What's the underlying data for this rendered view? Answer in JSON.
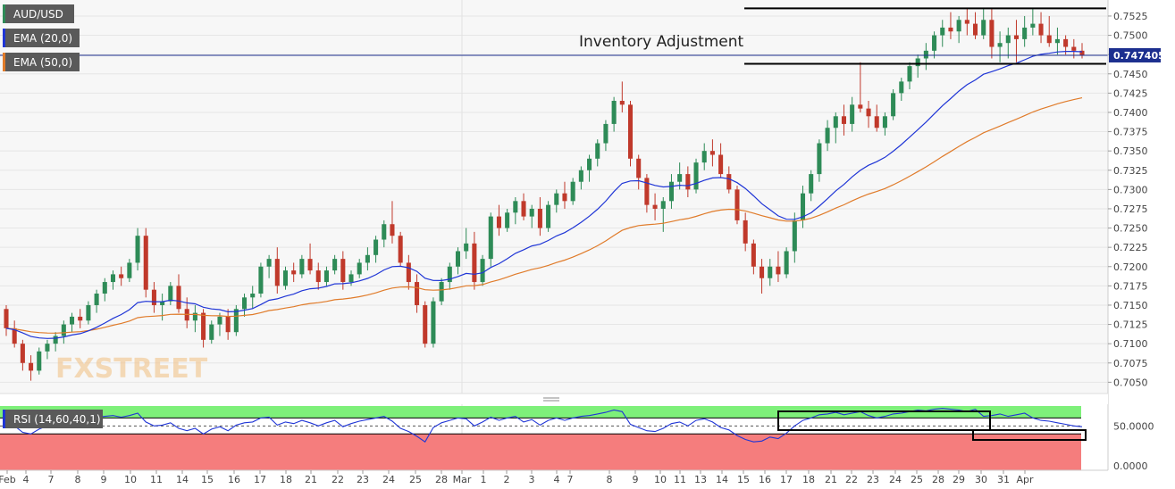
{
  "legend": {
    "symbol": "AUD/USD",
    "ema20": "EMA (20,0)",
    "ema50": "EMA (50,0)",
    "rsi": "RSI (14,60,40,1)"
  },
  "annotation": "Inventory Adjustment",
  "watermark": "FXSTREET",
  "colors": {
    "background": "#f7f7f7",
    "bull": "#2e8b57",
    "bear": "#c0392b",
    "ema20": "#1f35d6",
    "ema50": "#e07b2a",
    "rsi_upper": "#7ef07a",
    "rsi_lower": "#f57d7d",
    "price_tag": "#1c2f8f"
  },
  "chart_data": [
    {
      "type": "candlestick",
      "title": "AUD/USD",
      "ylim": [
        0.704,
        0.754
      ],
      "y_ticks": [
        "0.7525",
        "0.7500",
        "0.7475",
        "0.7450",
        "0.7425",
        "0.7400",
        "0.7375",
        "0.7350",
        "0.7325",
        "0.7300",
        "0.7275",
        "0.7250",
        "0.7225",
        "0.7200",
        "0.7175",
        "0.7150",
        "0.7125",
        "0.7100",
        "0.7075",
        "0.7050"
      ],
      "x_ticks": [
        "Feb",
        "4",
        "7",
        "8",
        "9",
        "10",
        "11",
        "14",
        "15",
        "16",
        "17",
        "18",
        "21",
        "22",
        "23",
        "24",
        "25",
        "28",
        "Mar",
        "1",
        "2",
        "3",
        "4",
        "7",
        "8",
        "9",
        "10",
        "11",
        "13",
        "14",
        "15",
        "16",
        "17",
        "18",
        "21",
        "22",
        "23",
        "24",
        "25",
        "28",
        "29",
        "30",
        "31",
        "Apr"
      ],
      "last_price": "0.747405",
      "last_value": 0.747405,
      "ohlc": [
        [
          0.7145,
          0.715,
          0.711,
          0.712
        ],
        [
          0.712,
          0.713,
          0.7095,
          0.71
        ],
        [
          0.71,
          0.7105,
          0.7065,
          0.7075
        ],
        [
          0.7075,
          0.7085,
          0.7052,
          0.7065
        ],
        [
          0.7065,
          0.7095,
          0.706,
          0.709
        ],
        [
          0.709,
          0.7105,
          0.708,
          0.71
        ],
        [
          0.71,
          0.7115,
          0.709,
          0.711
        ],
        [
          0.711,
          0.713,
          0.71,
          0.7125
        ],
        [
          0.7125,
          0.714,
          0.7115,
          0.7135
        ],
        [
          0.7135,
          0.7145,
          0.712,
          0.713
        ],
        [
          0.713,
          0.7155,
          0.7125,
          0.715
        ],
        [
          0.715,
          0.717,
          0.714,
          0.7165
        ],
        [
          0.7165,
          0.7185,
          0.7155,
          0.718
        ],
        [
          0.718,
          0.7195,
          0.717,
          0.719
        ],
        [
          0.719,
          0.72,
          0.7175,
          0.7185
        ],
        [
          0.7185,
          0.721,
          0.718,
          0.7205
        ],
        [
          0.7205,
          0.725,
          0.7195,
          0.724
        ],
        [
          0.724,
          0.725,
          0.716,
          0.717
        ],
        [
          0.717,
          0.718,
          0.714,
          0.715
        ],
        [
          0.715,
          0.7165,
          0.713,
          0.7155
        ],
        [
          0.7155,
          0.718,
          0.715,
          0.7175
        ],
        [
          0.7175,
          0.719,
          0.714,
          0.7145
        ],
        [
          0.7145,
          0.716,
          0.712,
          0.713
        ],
        [
          0.713,
          0.715,
          0.7115,
          0.714
        ],
        [
          0.714,
          0.7145,
          0.7095,
          0.7105
        ],
        [
          0.7105,
          0.713,
          0.71,
          0.7125
        ],
        [
          0.7125,
          0.714,
          0.711,
          0.7135
        ],
        [
          0.7135,
          0.7145,
          0.7105,
          0.7115
        ],
        [
          0.7115,
          0.715,
          0.711,
          0.7145
        ],
        [
          0.7145,
          0.7165,
          0.7135,
          0.716
        ],
        [
          0.716,
          0.7175,
          0.7145,
          0.7165
        ],
        [
          0.7165,
          0.7205,
          0.716,
          0.72
        ],
        [
          0.72,
          0.7215,
          0.7185,
          0.721
        ],
        [
          0.721,
          0.7225,
          0.7165,
          0.7175
        ],
        [
          0.7175,
          0.72,
          0.717,
          0.7195
        ],
        [
          0.7195,
          0.7205,
          0.718,
          0.719
        ],
        [
          0.719,
          0.7215,
          0.7185,
          0.721
        ],
        [
          0.721,
          0.723,
          0.719,
          0.7195
        ],
        [
          0.7195,
          0.7205,
          0.717,
          0.718
        ],
        [
          0.718,
          0.72,
          0.7175,
          0.7195
        ],
        [
          0.7195,
          0.7215,
          0.719,
          0.721
        ],
        [
          0.721,
          0.722,
          0.717,
          0.718
        ],
        [
          0.718,
          0.7195,
          0.7175,
          0.719
        ],
        [
          0.719,
          0.721,
          0.7185,
          0.7205
        ],
        [
          0.7205,
          0.7225,
          0.7195,
          0.7215
        ],
        [
          0.7215,
          0.724,
          0.7205,
          0.7235
        ],
        [
          0.7235,
          0.726,
          0.7225,
          0.7255
        ],
        [
          0.7255,
          0.7285,
          0.723,
          0.724
        ],
        [
          0.724,
          0.7245,
          0.72,
          0.7205
        ],
        [
          0.7205,
          0.7215,
          0.717,
          0.718
        ],
        [
          0.718,
          0.719,
          0.714,
          0.715
        ],
        [
          0.715,
          0.7155,
          0.7095,
          0.71
        ],
        [
          0.71,
          0.716,
          0.7095,
          0.7155
        ],
        [
          0.7155,
          0.7185,
          0.715,
          0.718
        ],
        [
          0.718,
          0.7205,
          0.717,
          0.72
        ],
        [
          0.72,
          0.7225,
          0.719,
          0.722
        ],
        [
          0.722,
          0.725,
          0.721,
          0.723
        ],
        [
          0.723,
          0.7245,
          0.717,
          0.718
        ],
        [
          0.718,
          0.7215,
          0.7175,
          0.721
        ],
        [
          0.721,
          0.727,
          0.72,
          0.7265
        ],
        [
          0.7265,
          0.728,
          0.724,
          0.725
        ],
        [
          0.725,
          0.7275,
          0.7245,
          0.727
        ],
        [
          0.727,
          0.729,
          0.7255,
          0.7285
        ],
        [
          0.7285,
          0.7295,
          0.726,
          0.7265
        ],
        [
          0.7265,
          0.728,
          0.725,
          0.7275
        ],
        [
          0.7275,
          0.729,
          0.724,
          0.725
        ],
        [
          0.725,
          0.7285,
          0.7245,
          0.728
        ],
        [
          0.728,
          0.73,
          0.727,
          0.7295
        ],
        [
          0.7295,
          0.731,
          0.7275,
          0.7285
        ],
        [
          0.7285,
          0.7315,
          0.728,
          0.731
        ],
        [
          0.731,
          0.733,
          0.73,
          0.7325
        ],
        [
          0.7325,
          0.7345,
          0.731,
          0.734
        ],
        [
          0.734,
          0.7365,
          0.733,
          0.736
        ],
        [
          0.736,
          0.739,
          0.735,
          0.7385
        ],
        [
          0.7385,
          0.742,
          0.7375,
          0.7415
        ],
        [
          0.7415,
          0.744,
          0.74,
          0.741
        ],
        [
          0.741,
          0.7415,
          0.733,
          0.734
        ],
        [
          0.734,
          0.7345,
          0.73,
          0.7315
        ],
        [
          0.7315,
          0.732,
          0.727,
          0.728
        ],
        [
          0.728,
          0.7295,
          0.726,
          0.7275
        ],
        [
          0.7275,
          0.729,
          0.7245,
          0.7285
        ],
        [
          0.7285,
          0.732,
          0.7275,
          0.731
        ],
        [
          0.731,
          0.7335,
          0.73,
          0.732
        ],
        [
          0.732,
          0.733,
          0.729,
          0.73
        ],
        [
          0.73,
          0.734,
          0.7295,
          0.7335
        ],
        [
          0.7335,
          0.736,
          0.7325,
          0.735
        ],
        [
          0.735,
          0.7365,
          0.733,
          0.7345
        ],
        [
          0.7345,
          0.736,
          0.7315,
          0.732
        ],
        [
          0.732,
          0.733,
          0.7295,
          0.73
        ],
        [
          0.73,
          0.7305,
          0.7255,
          0.726
        ],
        [
          0.726,
          0.727,
          0.722,
          0.723
        ],
        [
          0.723,
          0.7235,
          0.719,
          0.72
        ],
        [
          0.72,
          0.721,
          0.7165,
          0.7185
        ],
        [
          0.7185,
          0.721,
          0.7175,
          0.72
        ],
        [
          0.72,
          0.722,
          0.718,
          0.719
        ],
        [
          0.719,
          0.7225,
          0.7185,
          0.722
        ],
        [
          0.722,
          0.727,
          0.7205,
          0.726
        ],
        [
          0.726,
          0.7305,
          0.725,
          0.7295
        ],
        [
          0.7295,
          0.7325,
          0.7285,
          0.732
        ],
        [
          0.732,
          0.7365,
          0.731,
          0.736
        ],
        [
          0.736,
          0.739,
          0.735,
          0.738
        ],
        [
          0.738,
          0.74,
          0.736,
          0.7395
        ],
        [
          0.7395,
          0.741,
          0.737,
          0.7385
        ],
        [
          0.7385,
          0.742,
          0.7375,
          0.741
        ],
        [
          0.741,
          0.7465,
          0.74,
          0.7405
        ],
        [
          0.7405,
          0.7415,
          0.738,
          0.7395
        ],
        [
          0.7395,
          0.741,
          0.7375,
          0.738
        ],
        [
          0.738,
          0.74,
          0.737,
          0.7395
        ],
        [
          0.7395,
          0.743,
          0.739,
          0.7425
        ],
        [
          0.7425,
          0.7445,
          0.7415,
          0.744
        ],
        [
          0.744,
          0.7465,
          0.743,
          0.746
        ],
        [
          0.746,
          0.7475,
          0.7445,
          0.747
        ],
        [
          0.747,
          0.749,
          0.7455,
          0.748
        ],
        [
          0.748,
          0.7505,
          0.747,
          0.75
        ],
        [
          0.75,
          0.752,
          0.7485,
          0.751
        ],
        [
          0.751,
          0.753,
          0.7495,
          0.7505
        ],
        [
          0.7505,
          0.7525,
          0.749,
          0.752
        ],
        [
          0.752,
          0.7535,
          0.75,
          0.7515
        ],
        [
          0.7515,
          0.753,
          0.7495,
          0.75
        ],
        [
          0.75,
          0.7535,
          0.7495,
          0.752
        ],
        [
          0.752,
          0.7535,
          0.747,
          0.7485
        ],
        [
          0.7485,
          0.7505,
          0.7465,
          0.749
        ],
        [
          0.749,
          0.751,
          0.747,
          0.75
        ],
        [
          0.75,
          0.752,
          0.7465,
          0.7495
        ],
        [
          0.7495,
          0.7525,
          0.7485,
          0.751
        ],
        [
          0.751,
          0.7535,
          0.75,
          0.7515
        ],
        [
          0.7515,
          0.753,
          0.749,
          0.75
        ],
        [
          0.75,
          0.7525,
          0.7485,
          0.749
        ],
        [
          0.749,
          0.751,
          0.7475,
          0.7495
        ],
        [
          0.7495,
          0.75,
          0.7475,
          0.7485
        ],
        [
          0.7485,
          0.7495,
          0.747,
          0.748
        ],
        [
          0.748,
          0.749,
          0.747,
          0.747405
        ]
      ],
      "resistance_level": 0.7535,
      "support_level": 0.7463
    },
    {
      "type": "line",
      "title": "RSI (14,60,40,1)",
      "ylim": [
        0,
        75
      ],
      "y_ticks": [
        "50.0000",
        "0.0000"
      ],
      "upper_band": 60,
      "lower_band": 40,
      "values": [
        55,
        50,
        42,
        40,
        46,
        50,
        53,
        56,
        58,
        56,
        59,
        61,
        62,
        63,
        61,
        63,
        66,
        55,
        50,
        51,
        54,
        47,
        44,
        47,
        40,
        46,
        49,
        44,
        51,
        54,
        55,
        60,
        61,
        51,
        55,
        53,
        57,
        54,
        50,
        54,
        57,
        49,
        53,
        56,
        58,
        60,
        62,
        56,
        47,
        43,
        37,
        30,
        48,
        54,
        57,
        60,
        59,
        50,
        55,
        61,
        57,
        60,
        62,
        55,
        58,
        51,
        57,
        60,
        57,
        60,
        62,
        63,
        65,
        67,
        70,
        68,
        52,
        48,
        44,
        43,
        47,
        53,
        55,
        50,
        57,
        59,
        55,
        48,
        45,
        38,
        33,
        30,
        31,
        36,
        34,
        41,
        50,
        57,
        60,
        64,
        65,
        67,
        64,
        66,
        68,
        63,
        60,
        62,
        65,
        66,
        68,
        70,
        69,
        71,
        72,
        71,
        70,
        68,
        71,
        62,
        63,
        65,
        62,
        64,
        66,
        60,
        57,
        56,
        54,
        52,
        50,
        49
      ]
    }
  ]
}
